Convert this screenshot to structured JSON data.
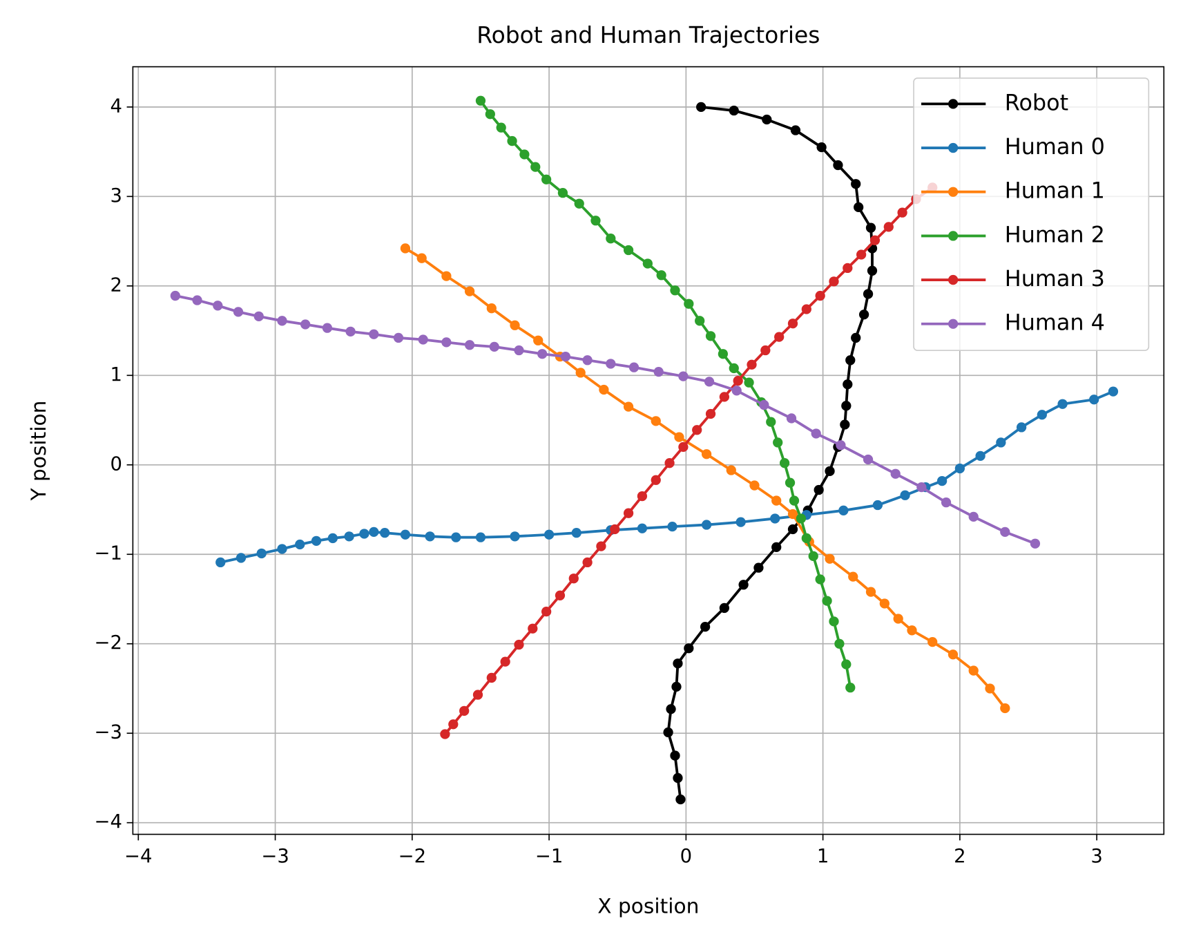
{
  "chart_data": {
    "type": "line",
    "title": "Robot and Human Trajectories",
    "x_label": "X position",
    "y_label": "Y position",
    "xlim": [
      -4.04,
      3.49
    ],
    "ylim": [
      -4.13,
      4.45
    ],
    "xticks": [
      {
        "value": -4,
        "label": "−4"
      },
      {
        "value": -3,
        "label": "−3"
      },
      {
        "value": -2,
        "label": "−2"
      },
      {
        "value": -1,
        "label": "−1"
      },
      0,
      1,
      2,
      3
    ],
    "yticks": [
      {
        "value": -4,
        "label": "−4"
      },
      {
        "value": -3,
        "label": "−3"
      },
      {
        "value": -2,
        "label": "−2"
      },
      {
        "value": -1,
        "label": "−1"
      },
      0,
      1,
      2,
      3,
      4
    ],
    "grid": true,
    "legend": "upper right",
    "series": [
      {
        "name": "Robot",
        "color": "#000000",
        "x": [
          0.11,
          0.35,
          0.59,
          0.8,
          0.99,
          1.11,
          1.24,
          1.26,
          1.35,
          1.36,
          1.36,
          1.33,
          1.3,
          1.24,
          1.2,
          1.18,
          1.17,
          1.16,
          1.11,
          1.05,
          0.97,
          0.89,
          0.78,
          0.66,
          0.53,
          0.42,
          0.28,
          0.14,
          0.02,
          -0.06,
          -0.07,
          -0.11,
          -0.13,
          -0.08,
          -0.06,
          -0.04
        ],
        "values": [
          4.0,
          3.96,
          3.86,
          3.74,
          3.55,
          3.35,
          3.14,
          2.88,
          2.65,
          2.42,
          2.17,
          1.91,
          1.68,
          1.42,
          1.17,
          0.9,
          0.66,
          0.45,
          0.2,
          -0.07,
          -0.28,
          -0.51,
          -0.72,
          -0.92,
          -1.15,
          -1.34,
          -1.6,
          -1.81,
          -2.05,
          -2.22,
          -2.48,
          -2.73,
          -2.99,
          -3.25,
          -3.5,
          -3.74
        ]
      },
      {
        "name": "Human 0",
        "color": "#1f77b4",
        "x": [
          -3.4,
          -3.25,
          -3.1,
          -2.95,
          -2.82,
          -2.7,
          -2.58,
          -2.46,
          -2.35,
          -2.28,
          -2.2,
          -2.05,
          -1.87,
          -1.68,
          -1.5,
          -1.25,
          -1.0,
          -0.8,
          -0.55,
          -0.32,
          -0.1,
          0.15,
          0.4,
          0.65,
          0.88,
          1.15,
          1.4,
          1.6,
          1.75,
          1.87,
          2.0,
          2.15,
          2.3,
          2.45,
          2.6,
          2.75,
          2.98,
          3.12
        ],
        "values": [
          -1.09,
          -1.04,
          -0.99,
          -0.94,
          -0.89,
          -0.85,
          -0.82,
          -0.8,
          -0.77,
          -0.75,
          -0.76,
          -0.78,
          -0.8,
          -0.81,
          -0.81,
          -0.8,
          -0.78,
          -0.76,
          -0.73,
          -0.71,
          -0.69,
          -0.67,
          -0.64,
          -0.6,
          -0.56,
          -0.51,
          -0.45,
          -0.34,
          -0.25,
          -0.18,
          -0.04,
          0.1,
          0.25,
          0.42,
          0.56,
          0.68,
          0.73,
          0.82
        ]
      },
      {
        "name": "Human 1",
        "color": "#ff7f0e",
        "x": [
          -2.05,
          -1.93,
          -1.75,
          -1.58,
          -1.42,
          -1.25,
          -1.08,
          -0.92,
          -0.77,
          -0.6,
          -0.42,
          -0.22,
          -0.05,
          0.15,
          0.33,
          0.5,
          0.66,
          0.78,
          0.9,
          1.05,
          1.22,
          1.35,
          1.45,
          1.55,
          1.65,
          1.8,
          1.95,
          2.1,
          2.22,
          2.33
        ],
        "values": [
          2.42,
          2.31,
          2.11,
          1.94,
          1.75,
          1.56,
          1.39,
          1.21,
          1.03,
          0.84,
          0.65,
          0.49,
          0.31,
          0.12,
          -0.06,
          -0.23,
          -0.4,
          -0.55,
          -0.86,
          -1.05,
          -1.25,
          -1.42,
          -1.55,
          -1.72,
          -1.85,
          -1.98,
          -2.12,
          -2.3,
          -2.5,
          -2.72
        ]
      },
      {
        "name": "Human 2",
        "color": "#2ca02c",
        "x": [
          -1.5,
          -1.43,
          -1.35,
          -1.27,
          -1.18,
          -1.1,
          -1.02,
          -0.9,
          -0.78,
          -0.66,
          -0.55,
          -0.42,
          -0.28,
          -0.18,
          -0.08,
          0.02,
          0.1,
          0.18,
          0.27,
          0.35,
          0.46,
          0.55,
          0.62,
          0.67,
          0.72,
          0.76,
          0.79,
          0.84,
          0.88,
          0.93,
          0.98,
          1.03,
          1.08,
          1.12,
          1.17,
          1.2
        ],
        "values": [
          4.07,
          3.92,
          3.77,
          3.62,
          3.47,
          3.33,
          3.19,
          3.04,
          2.92,
          2.73,
          2.53,
          2.4,
          2.25,
          2.12,
          1.95,
          1.8,
          1.61,
          1.44,
          1.24,
          1.08,
          0.92,
          0.7,
          0.48,
          0.25,
          0.02,
          -0.2,
          -0.4,
          -0.6,
          -0.82,
          -1.02,
          -1.28,
          -1.52,
          -1.75,
          -2.0,
          -2.23,
          -2.49
        ]
      },
      {
        "name": "Human 3",
        "color": "#d62728",
        "x": [
          -1.76,
          -1.7,
          -1.62,
          -1.52,
          -1.42,
          -1.32,
          -1.22,
          -1.12,
          -1.02,
          -0.92,
          -0.82,
          -0.72,
          -0.62,
          -0.52,
          -0.42,
          -0.32,
          -0.22,
          -0.12,
          -0.02,
          0.08,
          0.18,
          0.28,
          0.38,
          0.48,
          0.58,
          0.68,
          0.78,
          0.88,
          0.98,
          1.08,
          1.18,
          1.28,
          1.38,
          1.48,
          1.58,
          1.68,
          1.8
        ],
        "values": [
          -3.01,
          -2.9,
          -2.75,
          -2.57,
          -2.38,
          -2.2,
          -2.01,
          -1.83,
          -1.64,
          -1.46,
          -1.27,
          -1.09,
          -0.91,
          -0.72,
          -0.54,
          -0.35,
          -0.17,
          0.02,
          0.2,
          0.39,
          0.57,
          0.76,
          0.94,
          1.12,
          1.28,
          1.43,
          1.58,
          1.74,
          1.89,
          2.05,
          2.2,
          2.35,
          2.51,
          2.66,
          2.82,
          2.97,
          3.1
        ]
      },
      {
        "name": "Human 4",
        "color": "#9467bd",
        "x": [
          -3.73,
          -3.57,
          -3.42,
          -3.27,
          -3.12,
          -2.95,
          -2.78,
          -2.62,
          -2.45,
          -2.28,
          -2.1,
          -1.92,
          -1.75,
          -1.58,
          -1.4,
          -1.22,
          -1.05,
          -0.88,
          -0.72,
          -0.55,
          -0.38,
          -0.2,
          -0.02,
          0.17,
          0.37,
          0.57,
          0.77,
          0.95,
          1.13,
          1.33,
          1.53,
          1.72,
          1.9,
          2.1,
          2.33,
          2.55
        ],
        "values": [
          1.89,
          1.84,
          1.78,
          1.71,
          1.66,
          1.61,
          1.57,
          1.53,
          1.49,
          1.46,
          1.42,
          1.4,
          1.37,
          1.34,
          1.32,
          1.28,
          1.24,
          1.21,
          1.17,
          1.13,
          1.09,
          1.04,
          0.99,
          0.93,
          0.83,
          0.67,
          0.52,
          0.35,
          0.22,
          0.06,
          -0.1,
          -0.25,
          -0.42,
          -0.58,
          -0.75,
          -0.88
        ]
      }
    ]
  }
}
